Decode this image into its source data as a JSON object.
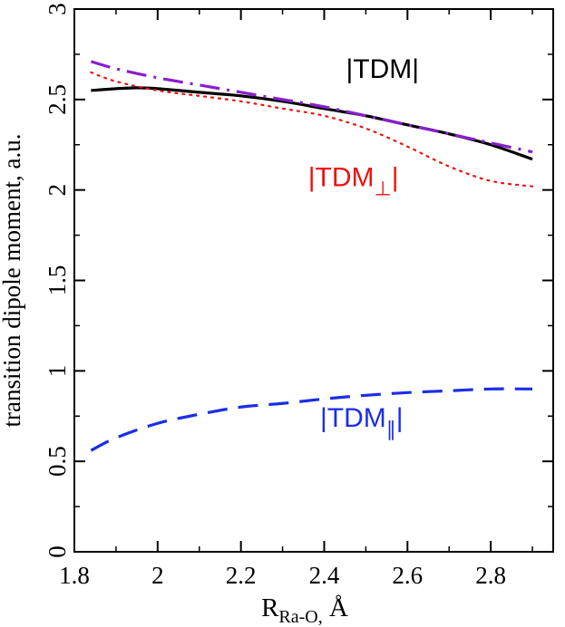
{
  "chart_data": {
    "type": "line",
    "xlabel": "R",
    "xlabel_sub": "Ra-O,",
    "xlabel_unit": " Å",
    "ylabel": "transition dipole  moment, a.u.",
    "xlim": [
      1.8,
      2.95
    ],
    "ylim": [
      0,
      3
    ],
    "xticks": [
      1.8,
      2.0,
      2.2,
      2.4,
      2.6,
      2.8
    ],
    "xtick_labels": [
      "1.8",
      "2",
      "2.2",
      "2.4",
      "2.6",
      "2.8"
    ],
    "yticks": [
      0,
      0.5,
      1.0,
      1.5,
      2.0,
      2.5,
      3.0
    ],
    "ytick_labels": [
      "0",
      "0.5",
      "1",
      "1.5",
      "2",
      "2.5",
      "3"
    ],
    "series": [
      {
        "name": "|TDM|",
        "color": "#000000",
        "style": "solid",
        "x": [
          1.84,
          1.9,
          1.95,
          2.0,
          2.1,
          2.2,
          2.3,
          2.4,
          2.5,
          2.6,
          2.7,
          2.8,
          2.9
        ],
        "y": [
          2.55,
          2.56,
          2.565,
          2.56,
          2.54,
          2.52,
          2.49,
          2.45,
          2.41,
          2.36,
          2.31,
          2.25,
          2.17
        ]
      },
      {
        "name": "|TDM⊥|",
        "color": "#ee1111",
        "style": "dotted",
        "x": [
          1.84,
          1.9,
          2.0,
          2.1,
          2.2,
          2.3,
          2.4,
          2.5,
          2.6,
          2.7,
          2.8,
          2.9
        ],
        "y": [
          2.65,
          2.6,
          2.55,
          2.52,
          2.49,
          2.45,
          2.41,
          2.34,
          2.24,
          2.13,
          2.05,
          2.02
        ]
      },
      {
        "name": "|TDM∥|",
        "color": "#1a2ee6",
        "style": "dashed",
        "x": [
          1.84,
          1.9,
          2.0,
          2.1,
          2.2,
          2.3,
          2.4,
          2.5,
          2.6,
          2.7,
          2.8,
          2.9
        ],
        "y": [
          0.56,
          0.63,
          0.71,
          0.76,
          0.8,
          0.82,
          0.845,
          0.865,
          0.88,
          0.89,
          0.9,
          0.9
        ]
      },
      {
        "name": "",
        "color": "#8a1fcf",
        "style": "dashdot",
        "x": [
          1.84,
          1.9,
          2.0,
          2.1,
          2.2,
          2.3,
          2.4,
          2.5,
          2.6,
          2.7,
          2.8,
          2.9
        ],
        "y": [
          2.71,
          2.67,
          2.62,
          2.58,
          2.54,
          2.5,
          2.46,
          2.41,
          2.36,
          2.31,
          2.26,
          2.21
        ]
      }
    ],
    "annotations": [
      {
        "text": "|TDM|",
        "base": "|TDM|",
        "sub": "",
        "color": "#000000",
        "x": 2.54,
        "y": 2.62
      },
      {
        "text": "|TDM⊥|",
        "base": "|TDM",
        "sub": "⊥",
        "color": "#ee1111",
        "x": 2.47,
        "y": 2.02
      },
      {
        "text": "|TDM∥|",
        "base": "|TDM",
        "sub": "∥",
        "color": "#1a2ee6",
        "x": 2.49,
        "y": 0.69
      }
    ]
  }
}
